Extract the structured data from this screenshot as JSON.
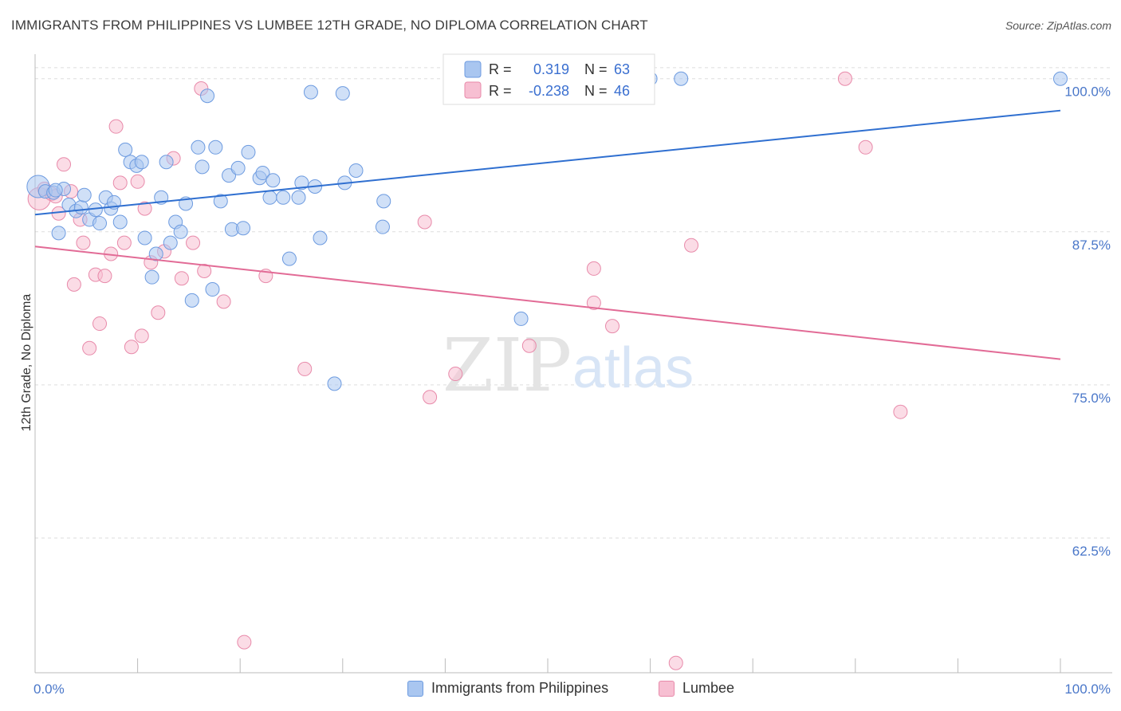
{
  "header": {
    "title": "IMMIGRANTS FROM PHILIPPINES VS LUMBEE 12TH GRADE, NO DIPLOMA CORRELATION CHART",
    "source": "Source: ZipAtlas.com"
  },
  "watermark": {
    "zip": "ZIP",
    "atlas": "atlas"
  },
  "colors": {
    "blue_fill": "#a9c6f0",
    "blue_stroke": "#6d9be0",
    "blue_line": "#2f6fd0",
    "pink_fill": "#f7bfd2",
    "pink_stroke": "#e88aaa",
    "pink_line": "#e26b96",
    "tick_text": "#4a77c9",
    "grid": "#dddddd"
  },
  "legend_box": {
    "rows": [
      {
        "r_label": "R =",
        "r_value": "0.319",
        "n_label": "N =",
        "n_value": "63"
      },
      {
        "r_label": "R =",
        "r_value": "-0.238",
        "n_label": "N =",
        "n_value": "46"
      }
    ]
  },
  "bottom_legend": [
    {
      "label": "Immigrants from Philippines"
    },
    {
      "label": "Lumbee"
    }
  ],
  "chart_data": {
    "type": "scatter",
    "xlabel": "",
    "ylabel": "12th Grade, No Diploma",
    "xlim": [
      0,
      100
    ],
    "ylim": [
      51.5,
      102
    ],
    "x_tick_labels": [
      {
        "value": 0,
        "label": "0.0%"
      },
      {
        "value": 100,
        "label": "100.0%"
      }
    ],
    "y_ticks": [
      {
        "value": 100,
        "label": "100.0%"
      },
      {
        "value": 87.5,
        "label": "87.5%"
      },
      {
        "value": 75,
        "label": "75.0%"
      },
      {
        "value": 62.5,
        "label": "62.5%"
      }
    ],
    "x_minor_ticks": [
      0,
      10,
      20,
      30,
      40,
      50,
      60,
      70,
      80,
      90,
      100
    ],
    "grid": true,
    "series": [
      {
        "name": "Immigrants from Philippines",
        "r": 0.319,
        "n": 63,
        "trend": {
          "x0": 0,
          "y0": 88.9,
          "x1": 100,
          "y1": 97.4
        },
        "points": [
          [
            0.3,
            91.2
          ],
          [
            1.0,
            90.8
          ],
          [
            1.8,
            90.7
          ],
          [
            2.3,
            87.4
          ],
          [
            2.8,
            91.0
          ],
          [
            3.3,
            89.7
          ],
          [
            4.0,
            89.2
          ],
          [
            4.5,
            89.5
          ],
          [
            4.8,
            90.5
          ],
          [
            5.3,
            88.5
          ],
          [
            5.9,
            89.3
          ],
          [
            6.3,
            88.2
          ],
          [
            6.9,
            90.3
          ],
          [
            7.4,
            89.4
          ],
          [
            7.7,
            89.9
          ],
          [
            8.3,
            88.3
          ],
          [
            8.8,
            94.2
          ],
          [
            9.3,
            93.2
          ],
          [
            9.9,
            92.9
          ],
          [
            10.4,
            93.2
          ],
          [
            10.7,
            87.0
          ],
          [
            11.4,
            83.8
          ],
          [
            11.8,
            85.7
          ],
          [
            12.3,
            90.3
          ],
          [
            12.8,
            93.2
          ],
          [
            13.2,
            86.6
          ],
          [
            13.7,
            88.3
          ],
          [
            14.2,
            87.5
          ],
          [
            14.7,
            89.8
          ],
          [
            15.3,
            81.9
          ],
          [
            15.9,
            94.4
          ],
          [
            16.3,
            92.8
          ],
          [
            16.8,
            98.6
          ],
          [
            17.3,
            82.8
          ],
          [
            17.6,
            94.4
          ],
          [
            18.1,
            90.0
          ],
          [
            18.9,
            92.1
          ],
          [
            19.2,
            87.7
          ],
          [
            19.8,
            92.7
          ],
          [
            20.3,
            87.8
          ],
          [
            20.8,
            94.0
          ],
          [
            21.9,
            91.9
          ],
          [
            22.2,
            92.3
          ],
          [
            22.9,
            90.3
          ],
          [
            23.2,
            91.7
          ],
          [
            24.2,
            90.3
          ],
          [
            24.8,
            85.3
          ],
          [
            25.7,
            90.3
          ],
          [
            26.0,
            91.5
          ],
          [
            27.3,
            91.2
          ],
          [
            27.8,
            87.0
          ],
          [
            30.2,
            91.5
          ],
          [
            31.3,
            92.5
          ],
          [
            34.0,
            90.0
          ],
          [
            33.9,
            87.9
          ],
          [
            26.9,
            98.9
          ],
          [
            30.0,
            98.8
          ],
          [
            29.2,
            75.1
          ],
          [
            47.4,
            80.4
          ],
          [
            60.0,
            100.0
          ],
          [
            63.0,
            100.0
          ],
          [
            100.0,
            100.0
          ],
          [
            2.0,
            90.9
          ]
        ]
      },
      {
        "name": "Lumbee",
        "r": -0.238,
        "n": 46,
        "trend": {
          "x0": 0,
          "y0": 86.3,
          "x1": 100,
          "y1": 77.1
        },
        "points": [
          [
            0.4,
            90.2
          ],
          [
            1.6,
            90.6
          ],
          [
            2.3,
            89.0
          ],
          [
            2.8,
            93.0
          ],
          [
            3.5,
            90.8
          ],
          [
            3.8,
            83.2
          ],
          [
            4.4,
            88.5
          ],
          [
            4.7,
            86.6
          ],
          [
            5.3,
            78.0
          ],
          [
            5.9,
            84.0
          ],
          [
            6.3,
            80.0
          ],
          [
            6.8,
            83.9
          ],
          [
            7.4,
            85.7
          ],
          [
            7.9,
            96.1
          ],
          [
            8.3,
            91.5
          ],
          [
            8.7,
            86.6
          ],
          [
            9.4,
            78.1
          ],
          [
            10.0,
            91.6
          ],
          [
            10.4,
            79.0
          ],
          [
            10.7,
            89.4
          ],
          [
            11.3,
            85.0
          ],
          [
            12.0,
            80.9
          ],
          [
            12.6,
            85.9
          ],
          [
            13.5,
            93.5
          ],
          [
            14.3,
            83.7
          ],
          [
            15.4,
            86.6
          ],
          [
            16.2,
            99.2
          ],
          [
            16.5,
            84.3
          ],
          [
            18.4,
            81.8
          ],
          [
            20.4,
            54.0
          ],
          [
            22.5,
            83.9
          ],
          [
            26.3,
            76.3
          ],
          [
            38.0,
            88.3
          ],
          [
            38.5,
            74.0
          ],
          [
            41.0,
            75.9
          ],
          [
            48.2,
            78.2
          ],
          [
            54.5,
            84.5
          ],
          [
            54.5,
            81.7
          ],
          [
            56.3,
            79.8
          ],
          [
            64.0,
            86.4
          ],
          [
            62.5,
            52.3
          ],
          [
            79.0,
            100.0
          ],
          [
            81.0,
            94.4
          ],
          [
            84.4,
            72.8
          ],
          [
            0.9,
            91.0
          ],
          [
            2.0,
            90.4
          ]
        ]
      }
    ]
  }
}
